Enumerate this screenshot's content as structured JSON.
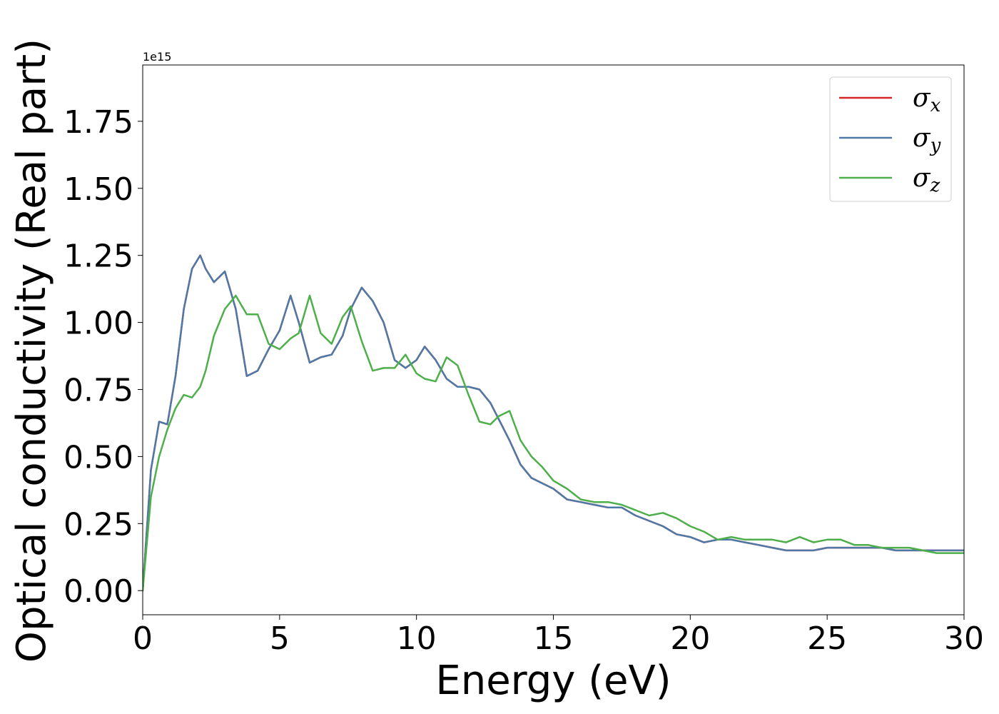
{
  "chart_data": {
    "type": "line",
    "xlabel": "Energy (eV)",
    "ylabel": "Optical conductivity (Real part)",
    "y_offset_label": "1e15",
    "xlim": [
      0,
      30
    ],
    "ylim": [
      -0.09,
      1.96
    ],
    "x_ticks": [
      0,
      5,
      10,
      15,
      20,
      25,
      30
    ],
    "x_tick_labels": [
      "0",
      "5",
      "10",
      "15",
      "20",
      "25",
      "30"
    ],
    "y_ticks": [
      0.0,
      0.25,
      0.5,
      0.75,
      1.0,
      1.25,
      1.5,
      1.75
    ],
    "y_tick_labels": [
      "0.00",
      "0.25",
      "0.50",
      "0.75",
      "1.00",
      "1.25",
      "1.50",
      "1.75"
    ],
    "grid": false,
    "legend_position": "top-right",
    "x": [
      0,
      0.3,
      0.6,
      0.9,
      1.2,
      1.5,
      1.8,
      2.1,
      2.3,
      2.6,
      3.0,
      3.4,
      3.8,
      4.2,
      4.6,
      5.0,
      5.4,
      5.7,
      6.1,
      6.5,
      6.9,
      7.3,
      7.6,
      8.0,
      8.4,
      8.8,
      9.2,
      9.6,
      10.0,
      10.3,
      10.7,
      11.1,
      11.5,
      11.9,
      12.3,
      12.7,
      13.0,
      13.4,
      13.8,
      14.2,
      14.6,
      15.0,
      15.5,
      16.0,
      16.5,
      17.0,
      17.5,
      18.0,
      18.5,
      19.0,
      19.5,
      20.0,
      20.5,
      21.0,
      21.5,
      22.0,
      22.5,
      23.0,
      23.5,
      24.0,
      24.5,
      25.0,
      25.5,
      26.0,
      26.5,
      27.0,
      27.5,
      28.0,
      28.5,
      29.0,
      29.5,
      30.0
    ],
    "series": [
      {
        "name": "σx",
        "color": "#d62728",
        "values": [
          0.0,
          0.45,
          0.63,
          0.62,
          0.8,
          1.05,
          1.2,
          1.25,
          1.2,
          1.15,
          1.19,
          1.05,
          0.8,
          0.82,
          0.9,
          0.97,
          1.1,
          1.0,
          0.85,
          0.87,
          0.88,
          0.95,
          1.05,
          1.13,
          1.08,
          1.0,
          0.86,
          0.83,
          0.86,
          0.91,
          0.86,
          0.79,
          0.76,
          0.76,
          0.75,
          0.7,
          0.64,
          0.56,
          0.47,
          0.42,
          0.4,
          0.38,
          0.34,
          0.33,
          0.32,
          0.31,
          0.31,
          0.28,
          0.26,
          0.24,
          0.21,
          0.2,
          0.18,
          0.19,
          0.19,
          0.18,
          0.17,
          0.16,
          0.15,
          0.15,
          0.15,
          0.16,
          0.16,
          0.16,
          0.16,
          0.16,
          0.15,
          0.15,
          0.15,
          0.15,
          0.15,
          0.15
        ]
      },
      {
        "name": "σy",
        "color": "#4e79a7",
        "values": [
          0.0,
          0.45,
          0.63,
          0.62,
          0.8,
          1.05,
          1.2,
          1.25,
          1.2,
          1.15,
          1.19,
          1.05,
          0.8,
          0.82,
          0.9,
          0.97,
          1.1,
          1.0,
          0.85,
          0.87,
          0.88,
          0.95,
          1.05,
          1.13,
          1.08,
          1.0,
          0.86,
          0.83,
          0.86,
          0.91,
          0.86,
          0.79,
          0.76,
          0.76,
          0.75,
          0.7,
          0.64,
          0.56,
          0.47,
          0.42,
          0.4,
          0.38,
          0.34,
          0.33,
          0.32,
          0.31,
          0.31,
          0.28,
          0.26,
          0.24,
          0.21,
          0.2,
          0.18,
          0.19,
          0.19,
          0.18,
          0.17,
          0.16,
          0.15,
          0.15,
          0.15,
          0.16,
          0.16,
          0.16,
          0.16,
          0.16,
          0.15,
          0.15,
          0.15,
          0.15,
          0.15,
          0.15
        ]
      },
      {
        "name": "σz",
        "color": "#4daf4a",
        "values": [
          0.0,
          0.35,
          0.5,
          0.6,
          0.68,
          0.73,
          0.72,
          0.76,
          0.82,
          0.95,
          1.05,
          1.1,
          1.03,
          1.03,
          0.92,
          0.9,
          0.94,
          0.96,
          1.1,
          0.96,
          0.92,
          1.02,
          1.06,
          0.93,
          0.82,
          0.83,
          0.83,
          0.88,
          0.81,
          0.79,
          0.78,
          0.87,
          0.84,
          0.73,
          0.63,
          0.62,
          0.65,
          0.67,
          0.56,
          0.5,
          0.46,
          0.41,
          0.38,
          0.34,
          0.33,
          0.33,
          0.32,
          0.3,
          0.28,
          0.29,
          0.27,
          0.24,
          0.22,
          0.19,
          0.2,
          0.19,
          0.19,
          0.19,
          0.18,
          0.2,
          0.18,
          0.19,
          0.19,
          0.17,
          0.17,
          0.16,
          0.16,
          0.16,
          0.15,
          0.14,
          0.14,
          0.14
        ]
      }
    ]
  }
}
